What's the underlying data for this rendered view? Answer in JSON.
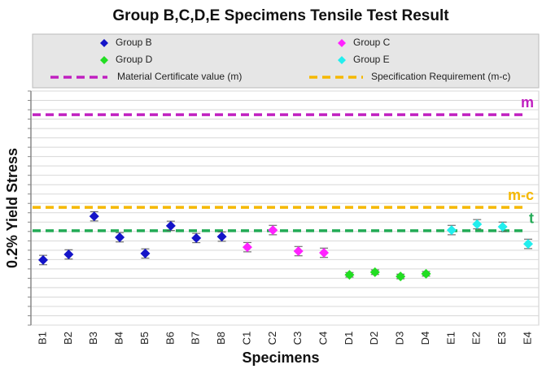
{
  "chart_data": {
    "type": "scatter",
    "title": "Group B,C,D,E Specimens Tensile Test Result",
    "x_label": "Specimens",
    "y_label": "0.2% Yield Stress",
    "categories": [
      "B1",
      "B2",
      "B3",
      "B4",
      "B5",
      "B6",
      "B7",
      "B8",
      "C1",
      "C2",
      "C3",
      "C4",
      "D1",
      "D2",
      "D3",
      "D4",
      "E1",
      "E2",
      "E3",
      "E4"
    ],
    "series": [
      {
        "name": "Group B",
        "color": "#1414c8",
        "values": [
          27.8,
          30.2,
          46.5,
          37.5,
          30.6,
          42.4,
          37.2,
          37.8,
          null,
          null,
          null,
          null,
          null,
          null,
          null,
          null,
          null,
          null,
          null,
          null
        ],
        "errors": [
          2,
          2,
          2,
          2,
          2,
          2,
          2,
          2,
          null,
          null,
          null,
          null,
          null,
          null,
          null,
          null,
          null,
          null,
          null,
          null
        ]
      },
      {
        "name": "Group C",
        "color": "#ff22ff",
        "values": [
          null,
          null,
          null,
          null,
          null,
          null,
          null,
          null,
          33.3,
          40.6,
          31.6,
          30.9,
          null,
          null,
          null,
          null,
          null,
          null,
          null,
          null
        ],
        "errors": [
          null,
          null,
          null,
          null,
          null,
          null,
          null,
          null,
          2,
          2,
          2,
          2,
          null,
          null,
          null,
          null,
          null,
          null,
          null,
          null
        ]
      },
      {
        "name": "Group D",
        "color": "#22dd22",
        "values": [
          null,
          null,
          null,
          null,
          null,
          null,
          null,
          null,
          null,
          null,
          null,
          null,
          21.5,
          22.6,
          20.8,
          21.9,
          null,
          null,
          null,
          null
        ],
        "errors": [
          null,
          null,
          null,
          null,
          null,
          null,
          null,
          null,
          null,
          null,
          null,
          null,
          1,
          1,
          1,
          1,
          null,
          null,
          null,
          null
        ]
      },
      {
        "name": "Group E",
        "color": "#22eeee",
        "values": [
          null,
          null,
          null,
          null,
          null,
          null,
          null,
          null,
          null,
          null,
          null,
          null,
          null,
          null,
          null,
          null,
          40.6,
          43.1,
          42.0,
          34.7
        ],
        "errors": [
          null,
          null,
          null,
          null,
          null,
          null,
          null,
          null,
          null,
          null,
          null,
          null,
          null,
          null,
          null,
          null,
          2,
          2,
          2,
          2
        ]
      }
    ],
    "reference_lines": [
      {
        "label": "m",
        "legend": "Material Certificate value (m)",
        "color": "#c020c0",
        "value": 89.9
      },
      {
        "label": "m-c",
        "legend": "Specification Requirement (m-c)",
        "color": "#f5b800",
        "value": 50.3
      },
      {
        "label": "t",
        "color": "#22aa55",
        "value": 40.3
      }
    ],
    "ylim": [
      0,
      100
    ],
    "yticks": [
      0,
      4,
      8,
      12,
      16,
      20,
      24,
      28,
      32,
      36,
      40,
      44,
      48,
      52,
      56,
      60,
      64,
      68,
      72,
      76,
      80,
      84,
      88,
      92,
      96,
      100
    ],
    "grid": true
  }
}
